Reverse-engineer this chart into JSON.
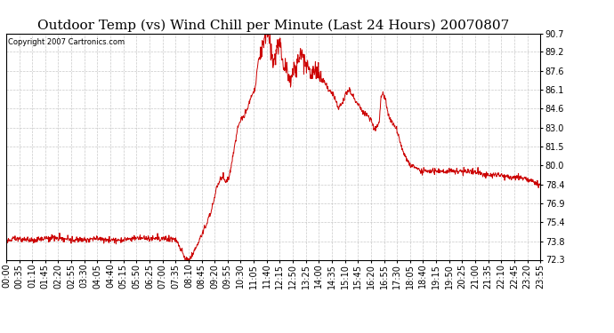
{
  "title": "Outdoor Temp (vs) Wind Chill per Minute (Last 24 Hours) 20070807",
  "copyright_text": "Copyright 2007 Cartronics.com",
  "y_min": 72.3,
  "y_max": 90.7,
  "y_ticks": [
    72.3,
    73.8,
    75.4,
    76.9,
    78.4,
    80.0,
    81.5,
    83.0,
    84.6,
    86.1,
    87.6,
    89.2,
    90.7
  ],
  "x_labels": [
    "00:00",
    "00:35",
    "01:10",
    "01:45",
    "02:20",
    "02:55",
    "03:30",
    "04:05",
    "04:40",
    "05:15",
    "05:50",
    "06:25",
    "07:00",
    "07:35",
    "08:10",
    "08:45",
    "09:20",
    "09:55",
    "10:30",
    "11:05",
    "11:40",
    "12:15",
    "12:50",
    "13:25",
    "14:00",
    "14:35",
    "15:10",
    "15:45",
    "16:20",
    "16:55",
    "17:30",
    "18:05",
    "18:40",
    "19:15",
    "19:50",
    "20:25",
    "21:00",
    "21:35",
    "22:10",
    "22:45",
    "23:20",
    "23:55"
  ],
  "line_color": "#cc0000",
  "background_color": "#ffffff",
  "grid_color": "#bbbbbb",
  "title_fontsize": 11,
  "copyright_fontsize": 6,
  "tick_fontsize": 7,
  "figsize": [
    6.9,
    3.75
  ],
  "dpi": 100
}
